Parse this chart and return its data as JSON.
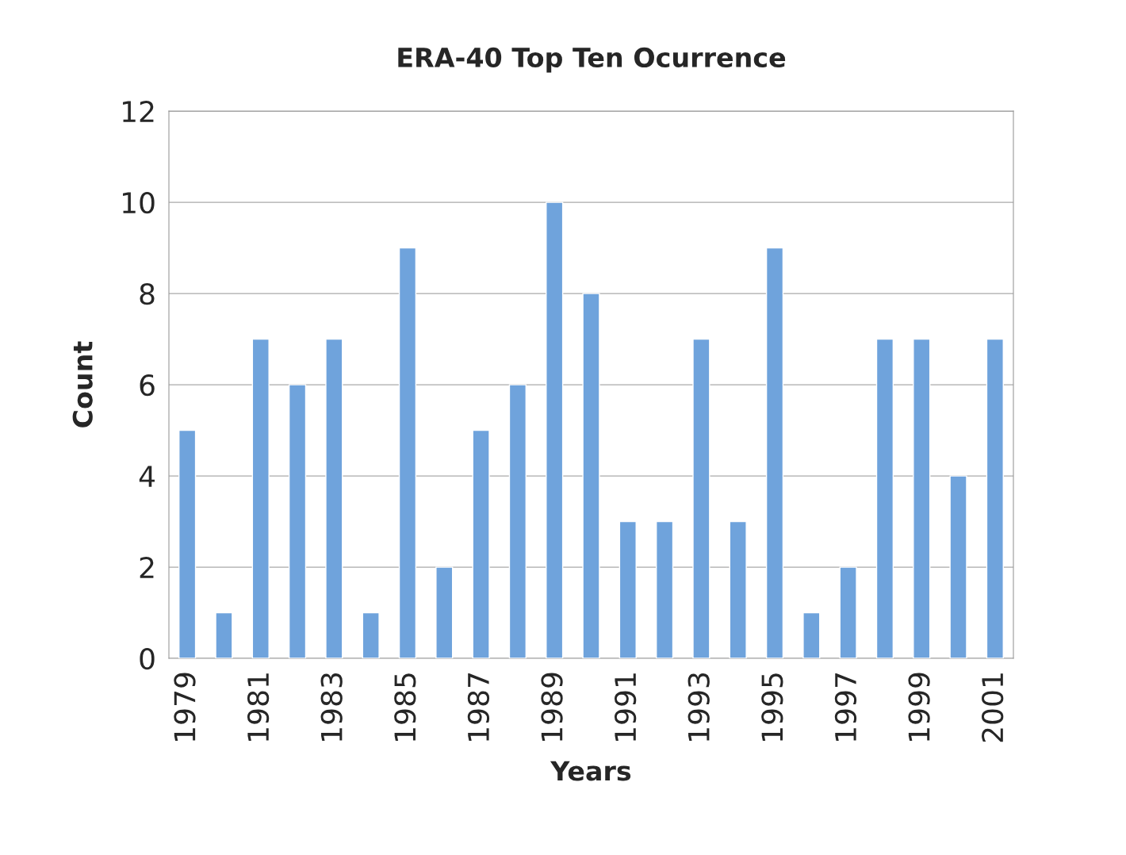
{
  "chart_data": {
    "type": "bar",
    "title": "ERA-40 Top Ten Ocurrence",
    "xlabel": "Years",
    "ylabel": "Count",
    "categories": [
      "1979",
      null,
      "1981",
      null,
      "1983",
      null,
      "1985",
      null,
      "1987",
      null,
      "1989",
      null,
      "1991",
      null,
      "1993",
      null,
      "1995",
      null,
      "1997",
      null,
      "1999",
      null,
      "2001"
    ],
    "values": [
      5,
      1,
      7,
      6,
      7,
      1,
      9,
      2,
      5,
      6,
      10,
      8,
      3,
      3,
      7,
      3,
      9,
      1,
      2,
      7,
      7,
      4,
      7
    ],
    "color": "#6fa3dc",
    "ylim": [
      0,
      12
    ],
    "yticks": [
      0,
      2,
      4,
      6,
      8,
      10,
      12
    ],
    "grid": "y",
    "legend": false
  }
}
